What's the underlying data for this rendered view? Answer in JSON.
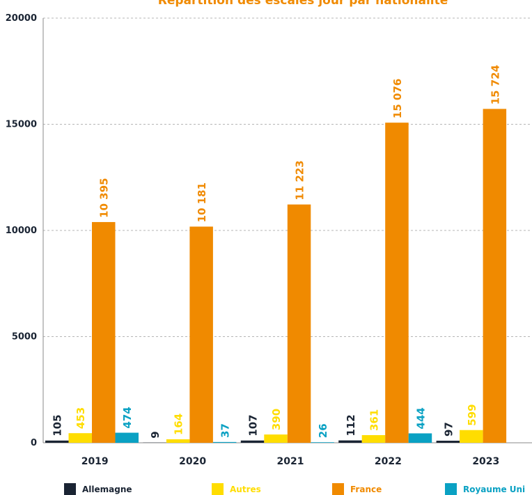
{
  "chart_data": {
    "type": "bar",
    "title": "Répartition des escales jour par nationalité",
    "title_color": "#f08a00",
    "categories": [
      "2019",
      "2020",
      "2021",
      "2022",
      "2023"
    ],
    "ylim": [
      0,
      20000
    ],
    "yticks": [
      0,
      5000,
      10000,
      15000,
      20000
    ],
    "grid": true,
    "legend_position": "bottom",
    "series": [
      {
        "name": "Allemagne",
        "color": "#1a2433",
        "values": [
          105,
          9,
          107,
          112,
          97
        ],
        "labels": [
          "105",
          "9",
          "107",
          "112",
          "97"
        ]
      },
      {
        "name": "Autres",
        "color": "#ffdd00",
        "values": [
          453,
          164,
          390,
          361,
          599
        ],
        "labels": [
          "453",
          "164",
          "390",
          "361",
          "599"
        ]
      },
      {
        "name": "France",
        "color": "#f08a00",
        "values": [
          10395,
          10181,
          11223,
          15076,
          15724
        ],
        "labels": [
          "10 395",
          "10 181",
          "11 223",
          "15 076",
          "15 724"
        ]
      },
      {
        "name": "Royaume Uni",
        "color": "#0aa1c3",
        "values": [
          474,
          37,
          26,
          444,
          0
        ],
        "labels": [
          "474",
          "37",
          "26",
          "444",
          ""
        ]
      }
    ]
  }
}
